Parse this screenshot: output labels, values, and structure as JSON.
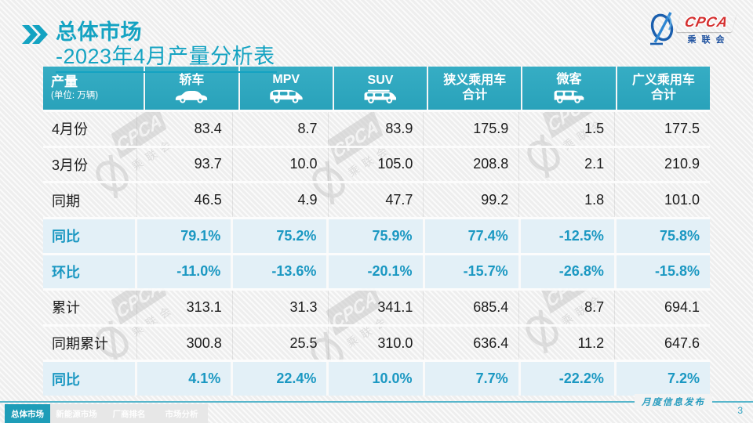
{
  "header": {
    "title_emphasis": "总体市场",
    "title_rest": "-2023年4月产量分析表"
  },
  "logo": {
    "acronym": "CPCA",
    "subtitle": "乘联会"
  },
  "table": {
    "corner": {
      "title": "产量",
      "unit": "(单位: 万辆)"
    },
    "columns": [
      {
        "label": "轿车",
        "label2": "",
        "icon": "sedan-icon"
      },
      {
        "label": "MPV",
        "label2": "",
        "icon": "mpv-icon"
      },
      {
        "label": "SUV",
        "label2": "",
        "icon": "suv-icon"
      },
      {
        "label": "狭义乘用车",
        "label2": "合计",
        "icon": ""
      },
      {
        "label": "微客",
        "label2": "",
        "icon": "van-icon"
      },
      {
        "label": "广义乘用车",
        "label2": "合计",
        "icon": ""
      }
    ],
    "rows": [
      {
        "label": "4月份",
        "type": "normal",
        "values": [
          "83.4",
          "8.7",
          "83.9",
          "175.9",
          "1.5",
          "177.5"
        ]
      },
      {
        "label": "3月份",
        "type": "normal",
        "values": [
          "93.7",
          "10.0",
          "105.0",
          "208.8",
          "2.1",
          "210.9"
        ]
      },
      {
        "label": "同期",
        "type": "normal",
        "values": [
          "46.5",
          "4.9",
          "47.7",
          "99.2",
          "1.8",
          "101.0"
        ]
      },
      {
        "label": "同比",
        "type": "percent",
        "values": [
          "79.1%",
          "75.2%",
          "75.9%",
          "77.4%",
          "-12.5%",
          "75.8%"
        ]
      },
      {
        "label": "环比",
        "type": "percent",
        "values": [
          "-11.0%",
          "-13.6%",
          "-20.1%",
          "-15.7%",
          "-26.8%",
          "-15.8%"
        ]
      },
      {
        "label": "累计",
        "type": "normal",
        "values": [
          "313.1",
          "31.3",
          "341.1",
          "685.4",
          "8.7",
          "694.1"
        ]
      },
      {
        "label": "同期累计",
        "type": "normal",
        "values": [
          "300.8",
          "25.5",
          "310.0",
          "636.4",
          "11.2",
          "647.6"
        ]
      },
      {
        "label": "同比",
        "type": "percent",
        "values": [
          "4.1%",
          "22.4%",
          "10.0%",
          "7.7%",
          "-22.2%",
          "7.2%"
        ]
      }
    ]
  },
  "footer": {
    "tabs": [
      {
        "label": "总体市场",
        "active": true
      },
      {
        "label": "新能源市场",
        "active": false
      },
      {
        "label": "厂商排名",
        "active": false
      },
      {
        "label": "市场分析",
        "active": false
      }
    ],
    "publish_label": "月度信息发布",
    "page_number": "3"
  },
  "colors": {
    "accent_teal": "#14a3c2",
    "header_cell_teal": "#2ba5bd",
    "percent_text_teal": "#1b98c2",
    "percent_row_bg": "#e3f0f7",
    "active_tab_teal": "#1e9db8",
    "logo_blue": "#1b4f9e",
    "logo_red": "#d42f2f",
    "watermark_gray": "#c6c6c6"
  }
}
